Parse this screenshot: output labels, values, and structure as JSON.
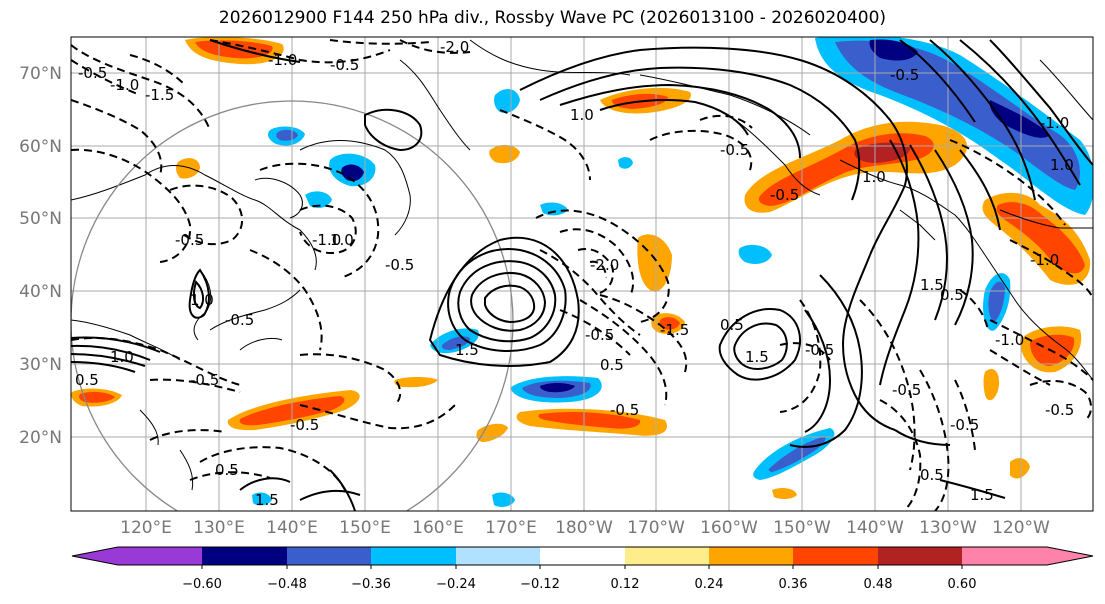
{
  "title": "2026012900 F144 250 hPa div., Rossby Wave PC (2026013100 - 2026020400)",
  "lat_ticks": [
    "70°N",
    "60°N",
    "50°N",
    "40°N",
    "30°N",
    "20°N"
  ],
  "lon_ticks": [
    "120°E",
    "130°E",
    "140°E",
    "150°E",
    "160°E",
    "170°E",
    "180°W",
    "170°W",
    "160°W",
    "150°W",
    "140°W",
    "130°W",
    "120°W"
  ],
  "colorbar": {
    "colors": [
      "#9a3ad6",
      "#000080",
      "#3a5fcd",
      "#00bfff",
      "#b0e2ff",
      "#ffffff",
      "#ffec8b",
      "#ffa500",
      "#ff4500",
      "#b22222",
      "#ff82ab"
    ],
    "tick_labels": [
      "−0.60",
      "−0.48",
      "−0.36",
      "−0.24",
      "−0.12",
      "0.12",
      "0.24",
      "0.36",
      "0.48",
      "0.60"
    ]
  },
  "contour_labels": [
    "-0.5",
    "-1.0",
    "-1.5",
    "-2.0",
    "-0.5",
    "-1.0",
    "-0.5",
    "-1.0",
    "-2.0",
    "1.0",
    "1.5",
    "-0.5",
    "1.0",
    "0.5",
    "-0.5",
    "0.5",
    "-1.5",
    "-0.5",
    "1.5",
    "-0.5",
    "1.0",
    "-0.5",
    "0.5",
    "1.5",
    "-0.5",
    "-0.5",
    "1.5",
    "-1.0",
    "-1.0",
    "0.5",
    "1.0",
    "-0.5",
    "-0.5",
    "1.0",
    "-0.5",
    "-0.5",
    "0.5",
    "-1.0",
    "1.5",
    "-0.5",
    "-0.5",
    "1.0",
    "0.5"
  ]
}
